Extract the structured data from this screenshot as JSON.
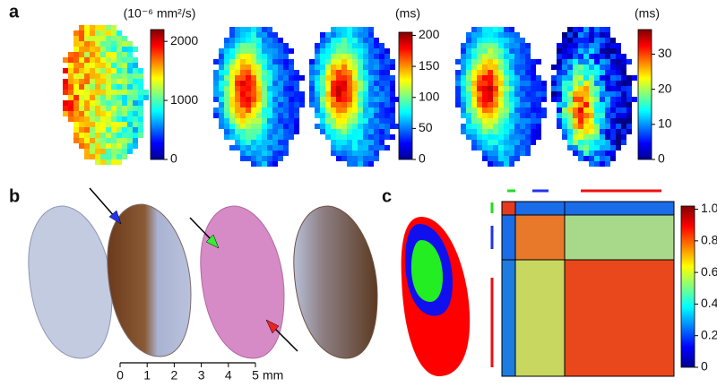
{
  "panel_labels": [
    "a",
    "b",
    "c"
  ],
  "colorbars": [
    {
      "label": "(10⁻⁶ mm²/s)",
      "ylim": [
        0,
        2200
      ],
      "yticks": [
        0,
        1000,
        2000
      ]
    },
    {
      "label": "(ms)",
      "ylim": [
        0,
        205
      ],
      "yticks": [
        0,
        50,
        100,
        150,
        200
      ]
    },
    {
      "label": "(ms)",
      "ylim": [
        0,
        37
      ],
      "yticks": [
        0,
        10,
        20,
        30
      ]
    },
    {
      "ylim": [
        0,
        1.02
      ],
      "yticks": [
        0,
        0.2,
        0.4,
        0.6,
        0.8,
        {
          "value": 1,
          "label": "1.0"
        }
      ]
    }
  ],
  "scale_bar": {
    "ticks": [
      0,
      1,
      2,
      3,
      4,
      5
    ],
    "unit": "mm"
  }
}
